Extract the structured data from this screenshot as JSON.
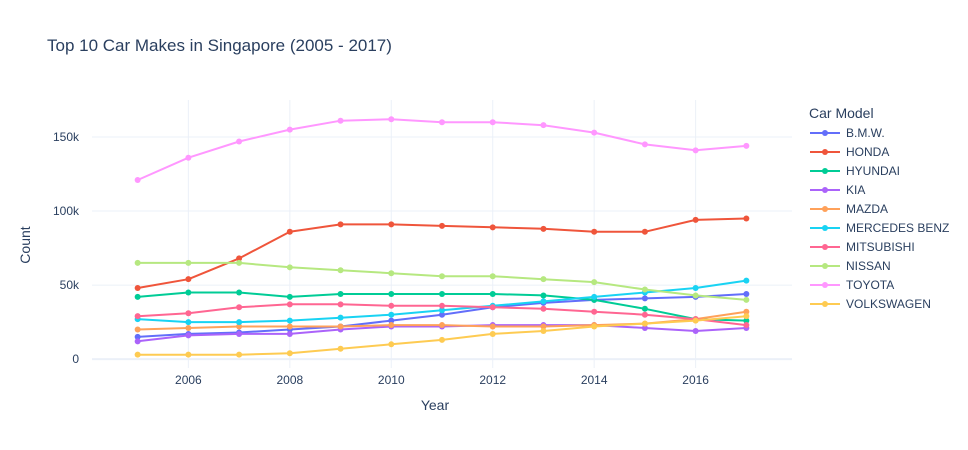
{
  "chart_data": {
    "type": "line",
    "title": "Top 10 Car Makes in Singapore (2005 - 2017)",
    "xlabel": "Year",
    "ylabel": "Count",
    "legend_title": "Car Model",
    "legend_position": "right",
    "grid": true,
    "xlim": [
      2004.1,
      2017.9
    ],
    "ylim": [
      -6000,
      175000
    ],
    "x_ticks": [
      2006,
      2008,
      2010,
      2012,
      2014,
      2016
    ],
    "y_ticks": [
      0,
      50000,
      100000,
      150000
    ],
    "y_tick_labels": [
      "0",
      "50k",
      "100k",
      "150k"
    ],
    "x": [
      2005,
      2006,
      2007,
      2008,
      2009,
      2010,
      2011,
      2012,
      2013,
      2014,
      2015,
      2016,
      2017
    ],
    "series": [
      {
        "name": "B.M.W.",
        "color": "#636efa",
        "values": [
          15000,
          17000,
          18000,
          20000,
          22000,
          26000,
          30000,
          35000,
          38000,
          40000,
          41000,
          42000,
          44000
        ]
      },
      {
        "name": "HONDA",
        "color": "#ef553b",
        "values": [
          48000,
          54000,
          68000,
          86000,
          91000,
          91000,
          90000,
          89000,
          88000,
          86000,
          86000,
          94000,
          95000
        ]
      },
      {
        "name": "HYUNDAI",
        "color": "#00cc96",
        "values": [
          42000,
          45000,
          45000,
          42000,
          44000,
          44000,
          44000,
          44000,
          43000,
          40000,
          34000,
          27000,
          26000
        ]
      },
      {
        "name": "KIA",
        "color": "#ab63fa",
        "values": [
          12000,
          16000,
          17000,
          17000,
          20000,
          22000,
          22000,
          23000,
          23000,
          23000,
          21000,
          19000,
          21000
        ]
      },
      {
        "name": "MAZDA",
        "color": "#ffa15a",
        "values": [
          20000,
          21000,
          22000,
          22000,
          22000,
          23000,
          23000,
          22000,
          22000,
          23000,
          24000,
          27000,
          32000
        ]
      },
      {
        "name": "MERCEDES BENZ",
        "color": "#19d3f3",
        "values": [
          27000,
          25000,
          25000,
          26000,
          28000,
          30000,
          33000,
          36000,
          39000,
          42000,
          45000,
          48000,
          53000
        ]
      },
      {
        "name": "MITSUBISHI",
        "color": "#ff6692",
        "values": [
          29000,
          31000,
          35000,
          37000,
          37000,
          36000,
          36000,
          35000,
          34000,
          32000,
          30000,
          27000,
          23000
        ]
      },
      {
        "name": "NISSAN",
        "color": "#b6e880",
        "values": [
          65000,
          65000,
          65000,
          62000,
          60000,
          58000,
          56000,
          56000,
          54000,
          52000,
          47000,
          43000,
          40000
        ]
      },
      {
        "name": "TOYOTA",
        "color": "#ff97ff",
        "values": [
          121000,
          136000,
          147000,
          155000,
          161000,
          162000,
          160000,
          160000,
          158000,
          153000,
          145000,
          141000,
          144000
        ]
      },
      {
        "name": "VOLKSWAGEN",
        "color": "#fecb52",
        "values": [
          3000,
          3000,
          3000,
          4000,
          7000,
          10000,
          13000,
          17000,
          19000,
          22000,
          24000,
          26000,
          29000
        ]
      }
    ]
  }
}
